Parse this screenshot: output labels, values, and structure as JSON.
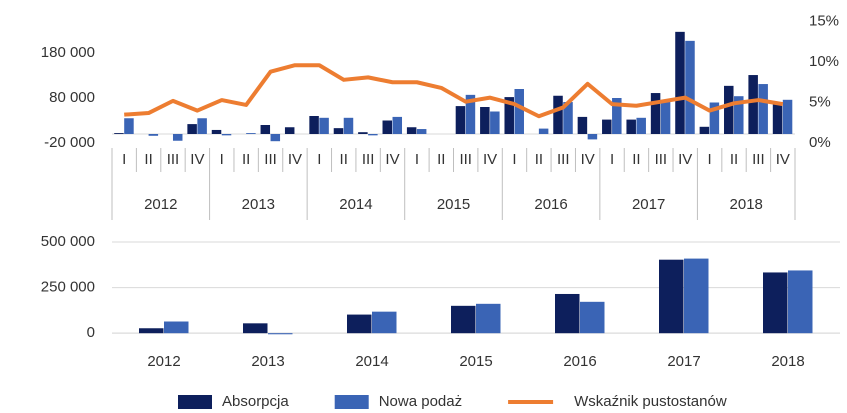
{
  "chart_data": [
    {
      "type": "bar",
      "categories": [
        "I",
        "II",
        "III",
        "IV",
        "I",
        "II",
        "III",
        "IV",
        "I",
        "II",
        "III",
        "IV",
        "I",
        "II",
        "III",
        "IV",
        "I",
        "II",
        "III",
        "IV",
        "I",
        "II",
        "III",
        "IV",
        "I",
        "II",
        "III",
        "IV"
      ],
      "category_groups": [
        "2012",
        "2013",
        "2014",
        "2015",
        "2016",
        "2017",
        "2018"
      ],
      "series": [
        {
          "name": "Absorpcja",
          "color": "#0d1f5c",
          "values": [
            2000,
            0,
            0,
            22000,
            9000,
            0,
            20000,
            15000,
            40000,
            13000,
            4000,
            30000,
            15000,
            0,
            62000,
            60000,
            82000,
            0,
            85000,
            38000,
            32000,
            32000,
            91000,
            227000,
            16000,
            107000,
            131000,
            67000
          ]
        },
        {
          "name": "Nowa podaż",
          "color": "#3a64b5",
          "values": [
            35000,
            -4000,
            -15000,
            35000,
            -3000,
            2000,
            -16000,
            0,
            36000,
            36000,
            -3000,
            38000,
            11000,
            0,
            87000,
            50000,
            100000,
            12000,
            71000,
            -12000,
            80000,
            36000,
            72000,
            207000,
            70000,
            84000,
            111000,
            76000
          ]
        },
        {
          "name": "Wskaźnik pustostanów",
          "type": "line",
          "axis": "y2",
          "color": "#ed7d31",
          "values": [
            3.5,
            3.7,
            5.2,
            4.0,
            5.3,
            4.7,
            8.8,
            9.6,
            9.6,
            7.8,
            8.1,
            7.5,
            7.5,
            6.8,
            5.1,
            5.6,
            4.8,
            3.3,
            4.4,
            7.3,
            4.8,
            4.6,
            5.1,
            5.6,
            4.0,
            4.9,
            5.3,
            4.8
          ]
        }
      ],
      "ylim": [
        -20000,
        250000
      ],
      "yticks": [
        {
          "value": -20000,
          "label": "-20 000"
        },
        {
          "value": 80000,
          "label": "80 000"
        },
        {
          "value": 180000,
          "label": "180 000"
        }
      ],
      "y2lim": [
        0,
        15
      ],
      "y2ticks": [
        {
          "value": 0,
          "label": "0%"
        },
        {
          "value": 5,
          "label": "5%"
        },
        {
          "value": 10,
          "label": "10%"
        },
        {
          "value": 15,
          "label": "15%"
        }
      ],
      "grid": false
    },
    {
      "type": "bar",
      "categories": [
        "2012",
        "2013",
        "2014",
        "2015",
        "2016",
        "2017",
        "2018"
      ],
      "series": [
        {
          "color": "#0d1f5c",
          "values": [
            27000,
            54000,
            102000,
            150000,
            215000,
            403000,
            333000
          ]
        },
        {
          "color": "#3a64b5",
          "values": [
            64000,
            -6000,
            118000,
            161000,
            172000,
            409000,
            344000
          ]
        }
      ],
      "ylim": [
        -10000,
        500000
      ],
      "yticks": [
        0,
        {
          "value": 250000,
          "label": "250 000"
        },
        {
          "value": 500000,
          "label": "500 000"
        }
      ],
      "grid": true
    }
  ]
}
